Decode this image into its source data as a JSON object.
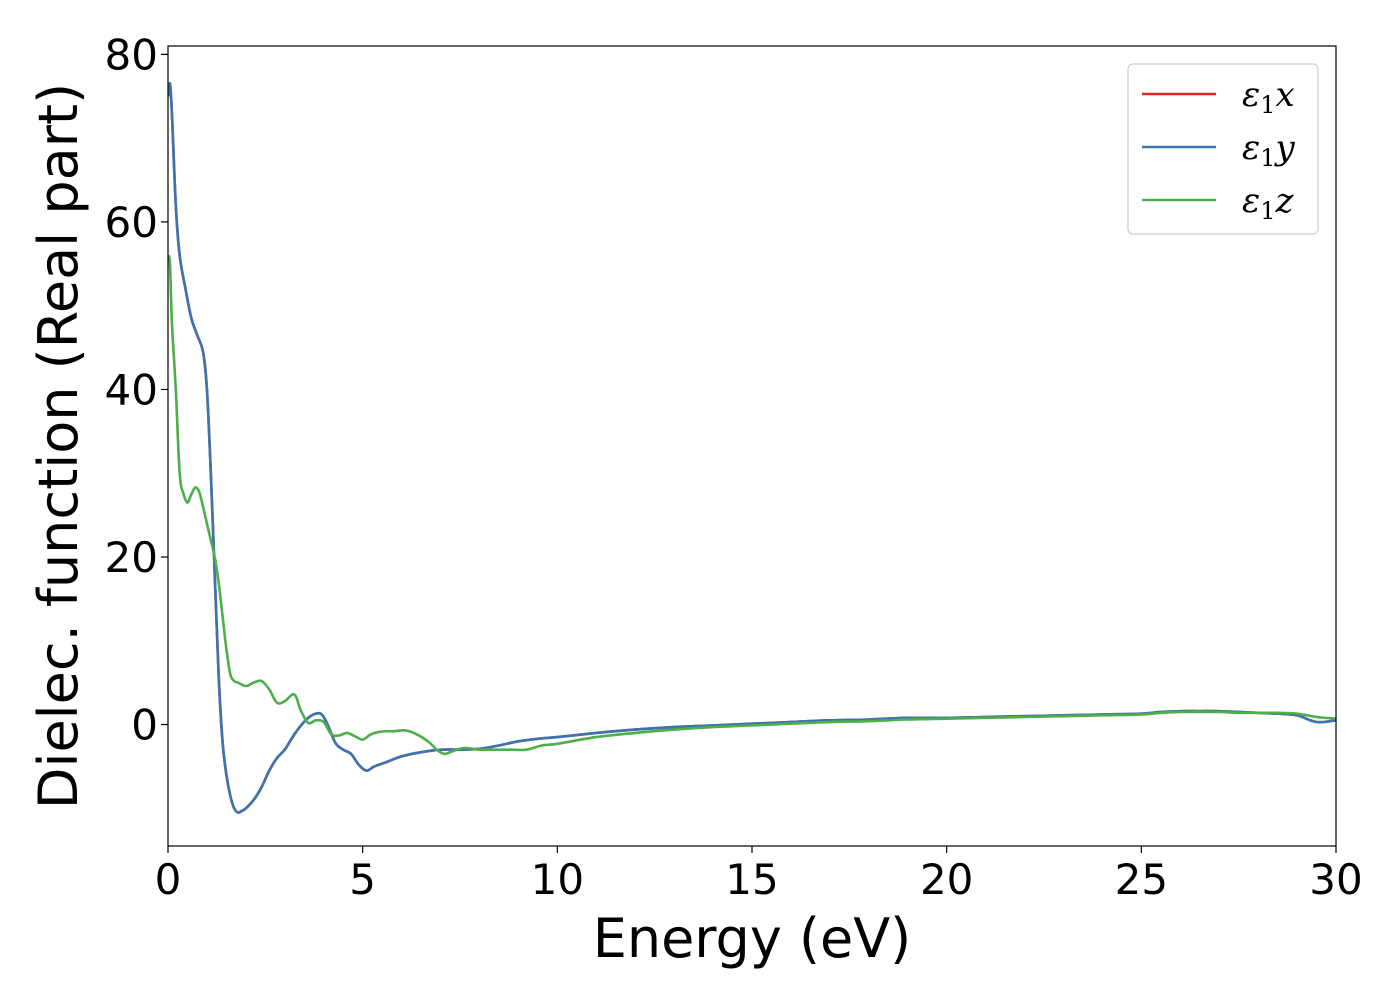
{
  "chart_data": {
    "type": "line",
    "xlabel": "Energy (eV)",
    "ylabel": "Dielec. function (Real part)",
    "xlim": [
      0,
      30
    ],
    "ylim": [
      -14.5,
      81
    ],
    "x_ticks": [
      0,
      5,
      10,
      15,
      20,
      25,
      30
    ],
    "y_ticks": [
      0,
      20,
      40,
      60,
      80
    ],
    "grid": false,
    "legend_position": "top-right",
    "series": [
      {
        "name": "ε1x",
        "legend_symbol": "ε",
        "legend_subscript": "1",
        "legend_suffix": "x",
        "color": "#d62728",
        "x": [
          0,
          0.05,
          0.1,
          0.2,
          0.3,
          0.45,
          0.6,
          0.75,
          0.9,
          1.0,
          1.1,
          1.2,
          1.3,
          1.4,
          1.5,
          1.6,
          1.7,
          1.8,
          1.9,
          2.0,
          2.2,
          2.4,
          2.6,
          2.8,
          3.0,
          3.2,
          3.4,
          3.6,
          3.8,
          3.95,
          4.1,
          4.3,
          4.5,
          4.7,
          4.9,
          5.1,
          5.3,
          5.6,
          6.0,
          6.5,
          7.0,
          7.5,
          8.0,
          8.5,
          9.0,
          9.5,
          10,
          11,
          12,
          13,
          14,
          15,
          16,
          17,
          18,
          19,
          20,
          21,
          22,
          23,
          24,
          25,
          25.5,
          26,
          26.5,
          27,
          27.5,
          28,
          28.5,
          29,
          29.5,
          30
        ],
        "values": [
          75,
          76.5,
          73,
          62,
          56,
          52,
          48.5,
          46.5,
          44.5,
          40,
          30,
          18,
          6,
          -2,
          -6,
          -8.5,
          -10,
          -10.5,
          -10.3,
          -10,
          -9,
          -7.5,
          -5.5,
          -4,
          -3,
          -1.5,
          -0.2,
          0.8,
          1.3,
          1.2,
          0,
          -2.2,
          -3,
          -3.5,
          -4.8,
          -5.5,
          -5,
          -4.5,
          -3.8,
          -3.3,
          -3,
          -3,
          -2.9,
          -2.5,
          -2,
          -1.7,
          -1.5,
          -1,
          -0.6,
          -0.3,
          -0.1,
          0.1,
          0.3,
          0.5,
          0.6,
          0.8,
          0.8,
          0.9,
          1.0,
          1.1,
          1.2,
          1.3,
          1.5,
          1.6,
          1.6,
          1.6,
          1.5,
          1.4,
          1.3,
          1.1,
          0.3,
          0.5
        ]
      },
      {
        "name": "ε1y",
        "legend_symbol": "ε",
        "legend_subscript": "1",
        "legend_suffix": "y",
        "color": "#3b75af",
        "x": [
          0,
          0.05,
          0.1,
          0.2,
          0.3,
          0.45,
          0.6,
          0.75,
          0.9,
          1.0,
          1.1,
          1.2,
          1.3,
          1.4,
          1.5,
          1.6,
          1.7,
          1.8,
          1.9,
          2.0,
          2.2,
          2.4,
          2.6,
          2.8,
          3.0,
          3.2,
          3.4,
          3.6,
          3.8,
          3.95,
          4.1,
          4.3,
          4.5,
          4.7,
          4.9,
          5.1,
          5.3,
          5.6,
          6.0,
          6.5,
          7.0,
          7.5,
          8.0,
          8.5,
          9.0,
          9.5,
          10,
          11,
          12,
          13,
          14,
          15,
          16,
          17,
          18,
          19,
          20,
          21,
          22,
          23,
          24,
          25,
          25.5,
          26,
          26.5,
          27,
          27.5,
          28,
          28.5,
          29,
          29.5,
          30
        ],
        "values": [
          75,
          76.5,
          73,
          62,
          56,
          52,
          48.5,
          46.5,
          44.5,
          40,
          30,
          18,
          6,
          -2,
          -6,
          -8.5,
          -10,
          -10.5,
          -10.3,
          -10,
          -9,
          -7.5,
          -5.5,
          -4,
          -3,
          -1.5,
          -0.2,
          0.8,
          1.3,
          1.2,
          0,
          -2.2,
          -3,
          -3.5,
          -4.8,
          -5.5,
          -5,
          -4.5,
          -3.8,
          -3.3,
          -3,
          -3,
          -2.9,
          -2.5,
          -2,
          -1.7,
          -1.5,
          -1,
          -0.6,
          -0.3,
          -0.1,
          0.1,
          0.3,
          0.5,
          0.6,
          0.8,
          0.8,
          0.9,
          1.0,
          1.1,
          1.2,
          1.3,
          1.5,
          1.6,
          1.6,
          1.6,
          1.5,
          1.4,
          1.3,
          1.1,
          0.3,
          0.5
        ]
      },
      {
        "name": "ε1z",
        "legend_symbol": "ε",
        "legend_subscript": "1",
        "legend_suffix": "z",
        "color": "#4daf4a",
        "x": [
          0,
          0.05,
          0.1,
          0.2,
          0.3,
          0.4,
          0.5,
          0.6,
          0.7,
          0.8,
          0.9,
          1.0,
          1.1,
          1.2,
          1.3,
          1.4,
          1.5,
          1.6,
          1.7,
          1.8,
          2.0,
          2.2,
          2.4,
          2.6,
          2.8,
          3.0,
          3.2,
          3.3,
          3.4,
          3.6,
          3.8,
          4.0,
          4.2,
          4.4,
          4.6,
          4.8,
          5.0,
          5.2,
          5.4,
          5.6,
          5.8,
          6.1,
          6.4,
          6.7,
          6.9,
          7.1,
          7.3,
          7.6,
          8.0,
          8.4,
          8.8,
          9.2,
          9.6,
          10,
          11,
          12,
          13,
          14,
          15,
          16,
          17,
          18,
          19,
          20,
          21,
          22,
          23,
          24,
          25,
          25.5,
          26,
          26.5,
          27,
          27.5,
          28,
          28.5,
          29,
          29.5,
          30
        ],
        "values": [
          56,
          55,
          48,
          40,
          30,
          27.5,
          26.5,
          27.5,
          28.3,
          27.8,
          26,
          24,
          22,
          20,
          17,
          13,
          9,
          6,
          5.2,
          5.0,
          4.6,
          5,
          5.2,
          4.2,
          2.6,
          2.8,
          3.6,
          3.2,
          1.8,
          0.2,
          0.5,
          0.3,
          -1.2,
          -1.3,
          -1,
          -1.4,
          -1.8,
          -1.2,
          -0.9,
          -0.8,
          -0.8,
          -0.7,
          -1.2,
          -2.1,
          -3,
          -3.5,
          -3.2,
          -2.8,
          -3,
          -3,
          -3,
          -3,
          -2.5,
          -2.3,
          -1.5,
          -1,
          -0.6,
          -0.3,
          -0.1,
          0.1,
          0.3,
          0.4,
          0.6,
          0.7,
          0.8,
          0.9,
          1.0,
          1.1,
          1.2,
          1.4,
          1.5,
          1.5,
          1.5,
          1.4,
          1.4,
          1.4,
          1.3,
          0.9,
          0.7
        ]
      }
    ]
  }
}
